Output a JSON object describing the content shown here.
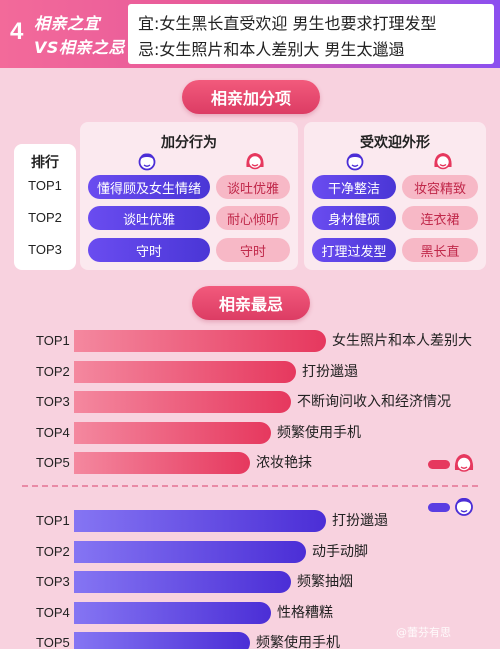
{
  "header": {
    "number": "4",
    "title_line1": "相亲之宜",
    "title_line2": "VS相亲之忌",
    "good_line": "宜:女生黑长直受欢迎  男生也要求打理发型",
    "bad_line": "忌:女生照片和本人差别大  男生太邋遢"
  },
  "bonus_section": {
    "title": "相亲加分项",
    "rank_header": "排行",
    "ranks": [
      "TOP1",
      "TOP2",
      "TOP3"
    ],
    "behavior": {
      "title": "加分行为",
      "male": [
        "懂得顾及女生情绪",
        "谈吐优雅",
        "守时"
      ],
      "female": [
        "谈吐优雅",
        "耐心倾听",
        "守时"
      ]
    },
    "appearance": {
      "title": "受欢迎外形",
      "male": [
        "干净整洁",
        "身材健硕",
        "打理过发型"
      ],
      "female": [
        "妆容精致",
        "连衣裙",
        "黑长直"
      ]
    }
  },
  "taboo_section": {
    "title": "相亲最忌"
  },
  "icons": {
    "male": "male-face-icon",
    "female": "female-face-icon"
  },
  "colors": {
    "female": "#e6385e",
    "male": "#4b2ed6",
    "female_tag_bg": "#f7b8c6"
  },
  "watermark": "@蕾芬有思",
  "chart_data": {
    "type": "bar",
    "orientation": "horizontal",
    "title": "相亲最忌",
    "series": [
      {
        "gender": "female",
        "categories": [
          "TOP1",
          "TOP2",
          "TOP3",
          "TOP4",
          "TOP5"
        ],
        "labels": [
          "女生照片和本人差别大",
          "打扮邋遢",
          "不断询问收入和经济情况",
          "频繁使用手机",
          "浓妆艳抹"
        ],
        "values": [
          5,
          4.4,
          4.3,
          3.9,
          3.5
        ]
      },
      {
        "gender": "male",
        "categories": [
          "TOP1",
          "TOP2",
          "TOP3",
          "TOP4",
          "TOP5"
        ],
        "labels": [
          "打扮邋遢",
          "动手动脚",
          "频繁抽烟",
          "性格糟糕",
          "频繁使用手机"
        ],
        "values": [
          5,
          4.6,
          4.3,
          3.9,
          3.5
        ]
      }
    ]
  }
}
